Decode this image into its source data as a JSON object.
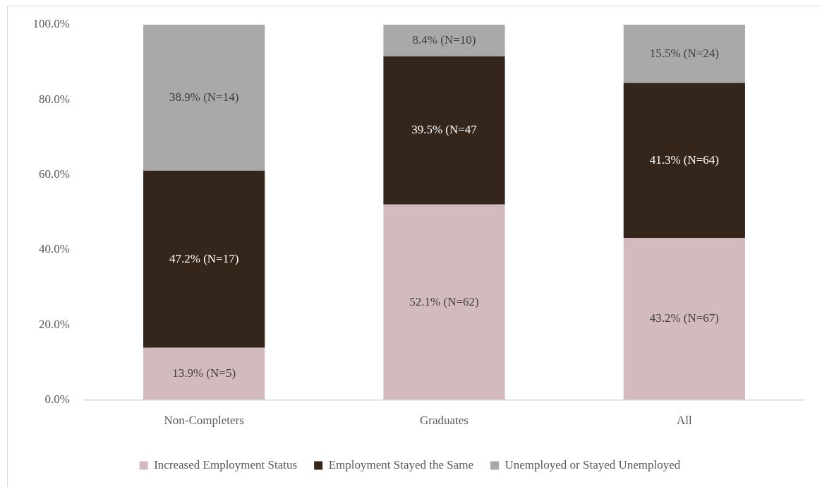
{
  "chart_data": {
    "type": "bar",
    "stacked": true,
    "categories": [
      "Non-Completers",
      "Graduates",
      "All"
    ],
    "series": [
      {
        "name": "Increased Employment Status",
        "color": "#d3bbbd",
        "values": [
          13.9,
          52.1,
          43.2
        ],
        "value_labels": [
          "13.9% (N=5)",
          "52.1% (N=62)",
          "43.2% (N=67)"
        ]
      },
      {
        "name": "Employment Stayed the Same",
        "color": "#35261b",
        "values": [
          47.2,
          39.5,
          41.3
        ],
        "value_labels": [
          "47.2% (N=17)",
          "39.5% (N=47",
          "41.3% (N=64)"
        ]
      },
      {
        "name": "Unemployed or Stayed Unemployed",
        "color": "#a9a9a9",
        "values": [
          38.9,
          8.4,
          15.5
        ],
        "value_labels": [
          "38.9% (N=14)",
          "8.4% (N=10)",
          "15.5% (N=24)"
        ]
      }
    ],
    "ylim": [
      0,
      100
    ],
    "yticks": [
      {
        "value": 0,
        "label": "0.0%"
      },
      {
        "value": 20,
        "label": "20.0%"
      },
      {
        "value": 40,
        "label": "40.0%"
      },
      {
        "value": 60,
        "label": "60.0%"
      },
      {
        "value": 80,
        "label": "80.0%"
      },
      {
        "value": 100,
        "label": "100.0%"
      }
    ],
    "grid": false,
    "legend": "bottom"
  }
}
